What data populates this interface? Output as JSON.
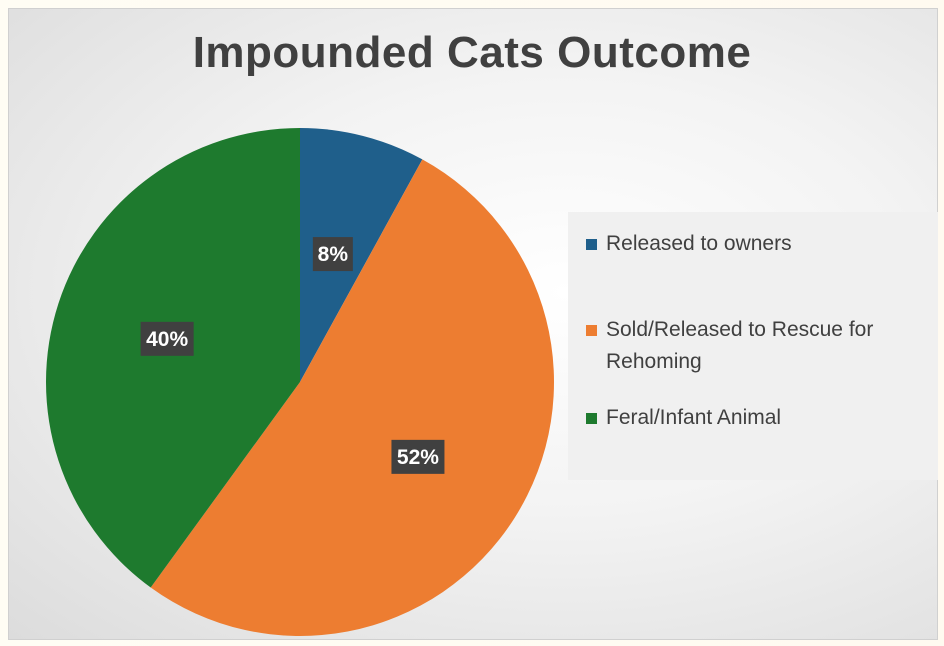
{
  "chart_data": {
    "type": "pie",
    "title": "Impounded Cats Outcome",
    "categories": [
      "Released to owners",
      "Sold/Released to Rescue for Rehoming",
      "Feral/Infant Animal"
    ],
    "values": [
      8,
      52,
      40
    ],
    "labels": [
      "8%",
      "52%",
      "40%"
    ],
    "colors": [
      "#1f5f8b",
      "#ed7d31",
      "#1e7a2e"
    ],
    "legend_position": "right"
  },
  "legend": {
    "items": [
      {
        "label_lines": [
          "Released to owners"
        ],
        "color": "#1f5f8b"
      },
      {
        "label_lines": [
          "Sold/Released to Rescue for",
          "Rehoming"
        ],
        "color": "#ed7d31"
      },
      {
        "label_lines": [
          "Feral/Infant Animal"
        ],
        "color": "#1e7a2e"
      }
    ]
  }
}
